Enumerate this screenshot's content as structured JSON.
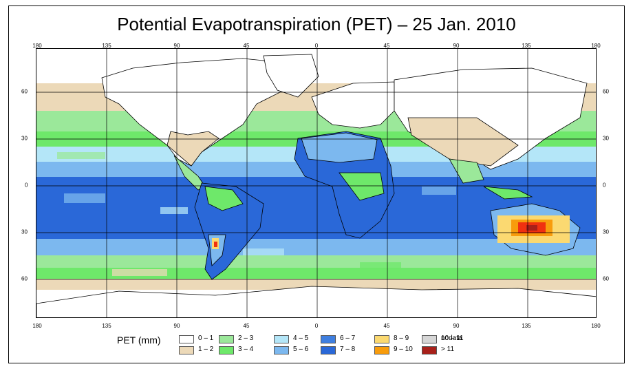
{
  "title": "Potential Evapotranspiration (PET) – 25 Jan. 2010",
  "x_ticks": [
    "180",
    "135",
    "90",
    "45",
    "0",
    "45",
    "90",
    "135",
    "180"
  ],
  "y_ticks": [
    "60",
    "30",
    "0",
    "30",
    "60"
  ],
  "legend": {
    "title": "PET (mm)",
    "items": [
      {
        "label": "0 – 1",
        "color": "#ffffff"
      },
      {
        "label": "1 – 2",
        "color": "#ecd9b8"
      },
      {
        "label": "2 – 3",
        "color": "#9be89a"
      },
      {
        "label": "3 – 4",
        "color": "#6ee86a"
      },
      {
        "label": "4 – 5",
        "color": "#b4e6f8"
      },
      {
        "label": "5 – 6",
        "color": "#7cb8ef"
      },
      {
        "label": "6 – 7",
        "color": "#3f7fe0"
      },
      {
        "label": "7 – 8",
        "color": "#2a68d8"
      },
      {
        "label": "8 – 9",
        "color": "#fbd971"
      },
      {
        "label": "9 – 10",
        "color": "#f89c0c"
      },
      {
        "label": "10 – 11",
        "color": "#f03010"
      },
      {
        "label": "> 11",
        "color": "#a8201a"
      },
      {
        "label": "nodata",
        "color": "#d6d6d6"
      }
    ]
  },
  "colors": {
    "ocean": "#2d77d8",
    "grid": "#000000",
    "coast": "#000000"
  }
}
